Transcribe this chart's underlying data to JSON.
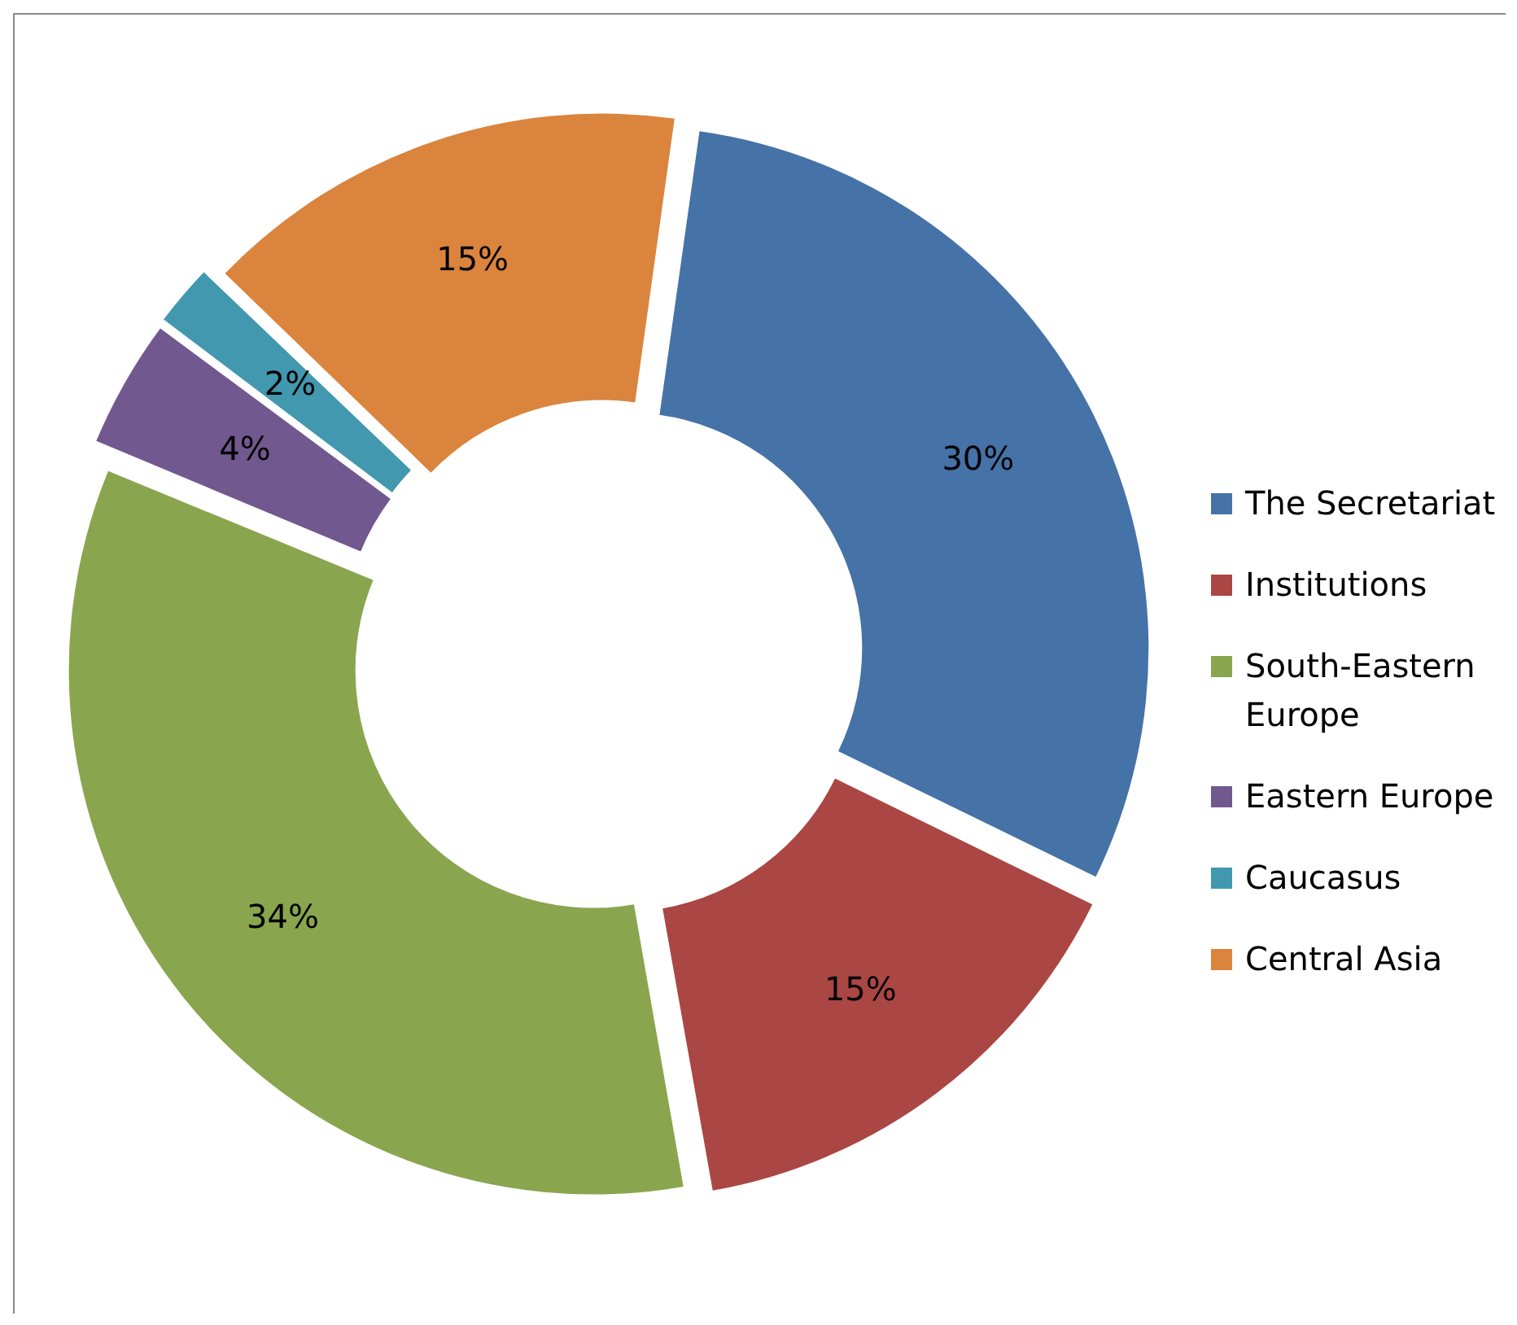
{
  "chart_data": {
    "type": "donut",
    "categories": [
      "The Secretariat",
      "Institutions",
      "South-Eastern Europe",
      "Eastern Europe",
      "Caucasus",
      "Central Asia"
    ],
    "values": [
      30,
      15,
      34,
      4,
      2,
      15
    ],
    "colors": [
      "#4572a7",
      "#aa4643",
      "#89a54e",
      "#71588f",
      "#4198af",
      "#db843d"
    ],
    "value_labels": [
      "30%",
      "15%",
      "34%",
      "4%",
      "2%",
      "15%"
    ],
    "legend": "right"
  }
}
